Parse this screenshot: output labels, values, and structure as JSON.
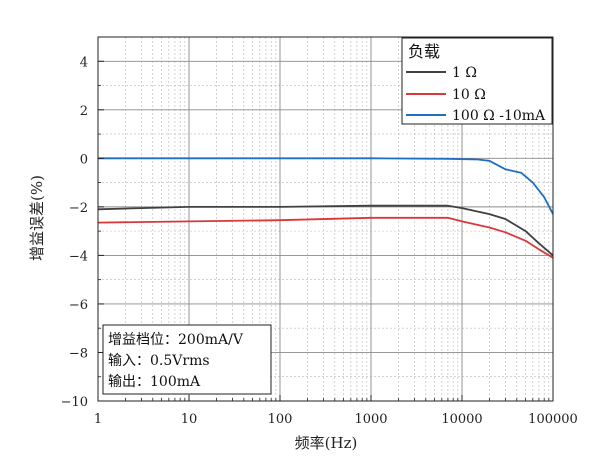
{
  "chart_data": {
    "type": "line",
    "xlabel": "频率(Hz)",
    "ylabel": "增益误差(%)",
    "xscale": "log",
    "xlim": [
      1,
      100000
    ],
    "ylim": [
      -10,
      5
    ],
    "x_ticks": [
      1,
      10,
      100,
      1000,
      10000,
      100000
    ],
    "x_tick_labels": [
      "1",
      "10",
      "100",
      "1000",
      "10000",
      "100000"
    ],
    "y_ticks": [
      4,
      2,
      0,
      -2,
      -4,
      -6,
      -8,
      -10
    ],
    "y_tick_labels": [
      "4",
      "2",
      "0",
      "−2",
      "−4",
      "−6",
      "−8",
      "−10"
    ],
    "grid": true,
    "legend": {
      "title": "负载",
      "placement": "top-right",
      "entries": [
        "1 Ω",
        "10 Ω",
        "100 Ω -10mA"
      ]
    },
    "annotation_lines": [
      "增益档位：200mA/V",
      "输入：0.5Vrms",
      "输出：100mA"
    ],
    "series": [
      {
        "name": "1 Ω",
        "color": "#404040",
        "points": [
          [
            1,
            -2.1
          ],
          [
            10,
            -2.0
          ],
          [
            100,
            -2.0
          ],
          [
            1000,
            -1.95
          ],
          [
            7000,
            -1.95
          ],
          [
            10000,
            -2.05
          ],
          [
            20000,
            -2.3
          ],
          [
            30000,
            -2.5
          ],
          [
            50000,
            -3.0
          ],
          [
            70000,
            -3.5
          ],
          [
            100000,
            -4.0
          ]
        ]
      },
      {
        "name": "10 Ω",
        "color": "#d9383a",
        "points": [
          [
            1,
            -2.65
          ],
          [
            10,
            -2.6
          ],
          [
            100,
            -2.55
          ],
          [
            1000,
            -2.45
          ],
          [
            7000,
            -2.45
          ],
          [
            10000,
            -2.6
          ],
          [
            20000,
            -2.85
          ],
          [
            30000,
            -3.05
          ],
          [
            50000,
            -3.4
          ],
          [
            70000,
            -3.75
          ],
          [
            100000,
            -4.1
          ]
        ]
      },
      {
        "name": "100 Ω -10mA",
        "color": "#1f6fc0",
        "points": [
          [
            1,
            0.0
          ],
          [
            100,
            0.0
          ],
          [
            1000,
            0.0
          ],
          [
            7000,
            -0.02
          ],
          [
            15000,
            -0.05
          ],
          [
            20000,
            -0.1
          ],
          [
            30000,
            -0.45
          ],
          [
            45000,
            -0.6
          ],
          [
            60000,
            -1.0
          ],
          [
            80000,
            -1.6
          ],
          [
            100000,
            -2.3
          ]
        ]
      }
    ]
  }
}
